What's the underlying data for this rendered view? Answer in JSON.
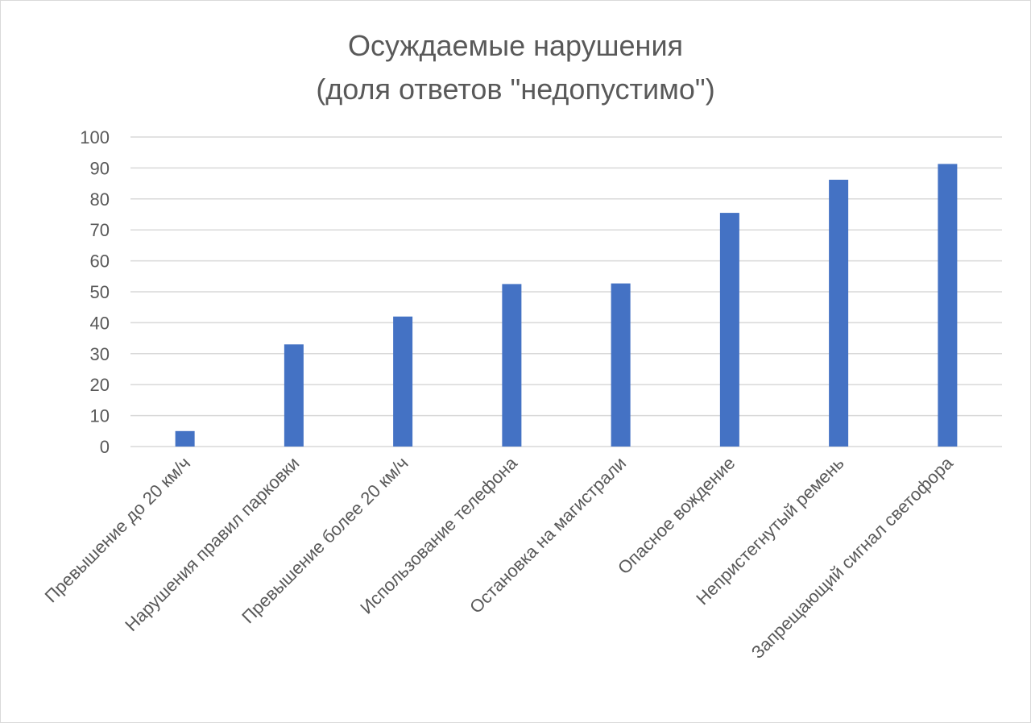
{
  "chart_data": {
    "type": "bar",
    "title_line1": "Осуждаемые нарушения",
    "title_line2": "(доля ответов \"недопустимо\")",
    "categories": [
      "Превышение до 20 км/ч",
      "Нарушения правил парковки",
      "Превышение более 20 км/ч",
      "Использование телефона",
      "Остановка на магистрали",
      "Опасное вождение",
      "Непристегнутый ремень",
      "Запрещающий сигнал светофора"
    ],
    "values": [
      5,
      33,
      42,
      52.5,
      52.7,
      75.5,
      86.2,
      91.3
    ],
    "ylim": [
      0,
      100
    ],
    "yticks": [
      "0",
      "10",
      "20",
      "30",
      "40",
      "50",
      "60",
      "70",
      "80",
      "90",
      "100"
    ],
    "grid": true,
    "legend": "none",
    "colors": {
      "bar": "#4472C4",
      "grid": "#d9d9d9",
      "text": "#595959"
    }
  }
}
